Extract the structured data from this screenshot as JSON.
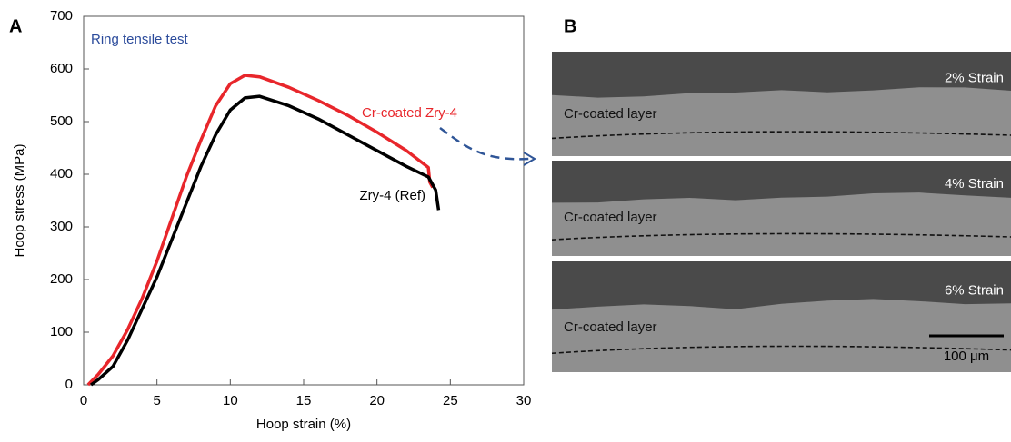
{
  "chart_data": {
    "type": "line",
    "panel_label": "A",
    "title": "Ring tensile test",
    "x_label": "Hoop strain (%)",
    "y_label": "Hoop stress (MPa)",
    "xlim": [
      0,
      30
    ],
    "xticks": [
      0,
      5,
      10,
      15,
      20,
      25,
      30
    ],
    "ylim": [
      0,
      700
    ],
    "yticks": [
      0,
      100,
      200,
      300,
      400,
      500,
      600,
      700
    ],
    "series": [
      {
        "name": "Cr-coated Zry-4",
        "color": "#e8262b",
        "x": [
          0.3,
          1,
          2,
          3,
          4,
          5,
          6,
          7,
          8,
          9,
          10,
          11,
          12,
          14,
          16,
          18,
          20,
          22,
          23.5,
          23.6,
          23.8
        ],
        "values": [
          0,
          20,
          55,
          105,
          165,
          235,
          315,
          395,
          465,
          530,
          572,
          588,
          585,
          565,
          540,
          512,
          480,
          445,
          413,
          385,
          375
        ]
      },
      {
        "name": "Zry-4 (Ref)",
        "color": "#000000",
        "x": [
          0.5,
          1,
          2,
          3,
          4,
          5,
          6,
          7,
          8,
          9,
          10,
          11,
          12,
          14,
          16,
          18,
          20,
          22,
          23.5,
          24,
          24.2
        ],
        "values": [
          0,
          10,
          35,
          85,
          145,
          205,
          275,
          345,
          415,
          475,
          522,
          545,
          548,
          530,
          505,
          475,
          445,
          415,
          395,
          370,
          332
        ]
      }
    ]
  },
  "panel_b": {
    "label": "B",
    "layer_label": "Cr-coated layer",
    "images": [
      "2% Strain",
      "4% Strain",
      "6% Strain"
    ],
    "scale_bar": "100 μm"
  }
}
